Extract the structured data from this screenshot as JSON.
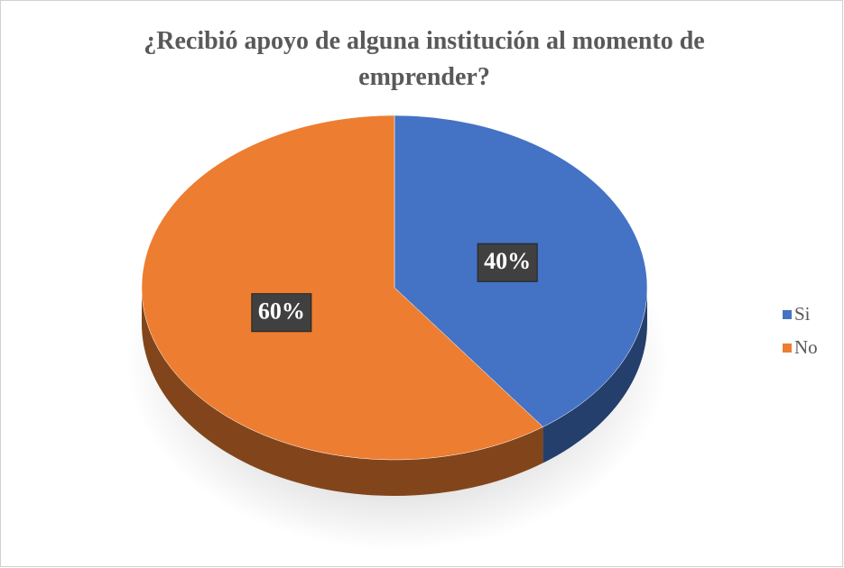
{
  "chart_data": {
    "type": "pie",
    "title": "¿Recibió apoyo de alguna institución al momento de emprender?",
    "categories": [
      "Si",
      "No"
    ],
    "values": [
      40,
      60
    ],
    "value_labels": [
      "40%",
      "60%"
    ],
    "colors": [
      "#4472c4",
      "#ed7d31"
    ],
    "legend": "right"
  }
}
